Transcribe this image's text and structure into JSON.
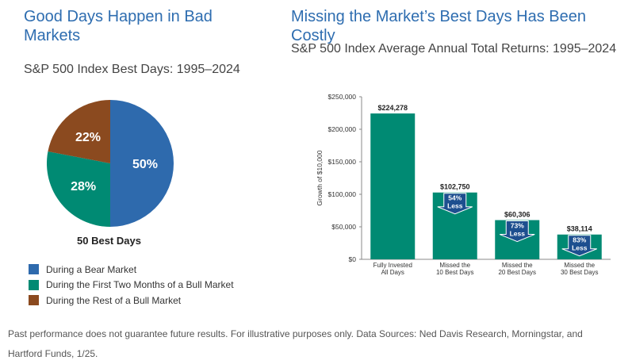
{
  "left": {
    "title": "Good Days Happen in Bad Markets",
    "subtitle": "S&P 500 Index Best Days: 1995–2024",
    "pie_caption": "50 Best Days"
  },
  "right": {
    "title": "Missing the Market’s Best Days Has Been Costly",
    "subtitle": "S&P 500 Index Average Annual Total Returns: 1995–2024"
  },
  "footnote": "Past performance does not guarantee future results. For illustrative purposes only. Data Sources: Ned Davis Research, Morningstar, and Hartford Funds, 1/25.",
  "chart_data": [
    {
      "type": "pie",
      "title": "50 Best Days",
      "slices": [
        {
          "label": "During a Bear Market",
          "value": 50,
          "display": "50%",
          "color": "#2e6aad"
        },
        {
          "label": "During the First Two Months of a Bull Market",
          "value": 28,
          "display": "28%",
          "color": "#008a73"
        },
        {
          "label": "During the Rest of a Bull Market",
          "value": 22,
          "display": "22%",
          "color": "#8b4a1f"
        }
      ],
      "legend_position": "bottom-left"
    },
    {
      "type": "bar",
      "ylabel": "Growth of $10,000",
      "ylim": [
        0,
        250000
      ],
      "yticks": [
        0,
        50000,
        100000,
        150000,
        200000,
        250000
      ],
      "ytick_labels": [
        "$0",
        "$50,000",
        "$100,000",
        "$150,000",
        "$200,000",
        "$250,000"
      ],
      "categories": [
        [
          "Fully Invested",
          "All Days"
        ],
        [
          "Missed the",
          "10 Best Days"
        ],
        [
          "Missed the",
          "20 Best Days"
        ],
        [
          "Missed the",
          "30 Best Days"
        ]
      ],
      "values": [
        224278,
        102750,
        60306,
        38114
      ],
      "value_labels": [
        "$224,278",
        "$102,750",
        "$60,306",
        "$38,114"
      ],
      "reductions": [
        null,
        [
          "54%",
          "Less"
        ],
        [
          "73%",
          "Less"
        ],
        [
          "83%",
          "Less"
        ]
      ],
      "bar_color": "#008a73",
      "arrow_color": "#1d4f8f",
      "grid": false
    }
  ]
}
